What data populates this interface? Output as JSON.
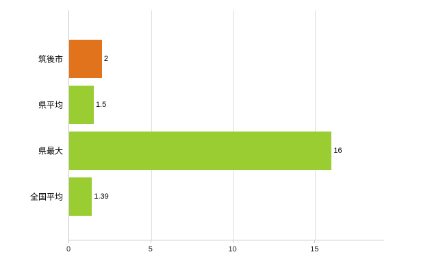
{
  "chart_data": {
    "type": "bar",
    "orientation": "horizontal",
    "categories": [
      "筑後市",
      "県平均",
      "県最大",
      "全国平均"
    ],
    "values": [
      2,
      1.5,
      16,
      1.39
    ],
    "value_labels": [
      "2",
      "1.5",
      "16",
      "1.39"
    ],
    "bar_colors": [
      "#e1731d",
      "#9acd32",
      "#9acd32",
      "#9acd32"
    ],
    "x_ticks": [
      0,
      5,
      10,
      15
    ],
    "xlim": [
      0,
      19.2
    ],
    "grid": true,
    "legend": false,
    "title": "",
    "xlabel": "",
    "ylabel": ""
  },
  "colors": {
    "highlight_bar": "#e1731d",
    "default_bar": "#9acd32"
  }
}
